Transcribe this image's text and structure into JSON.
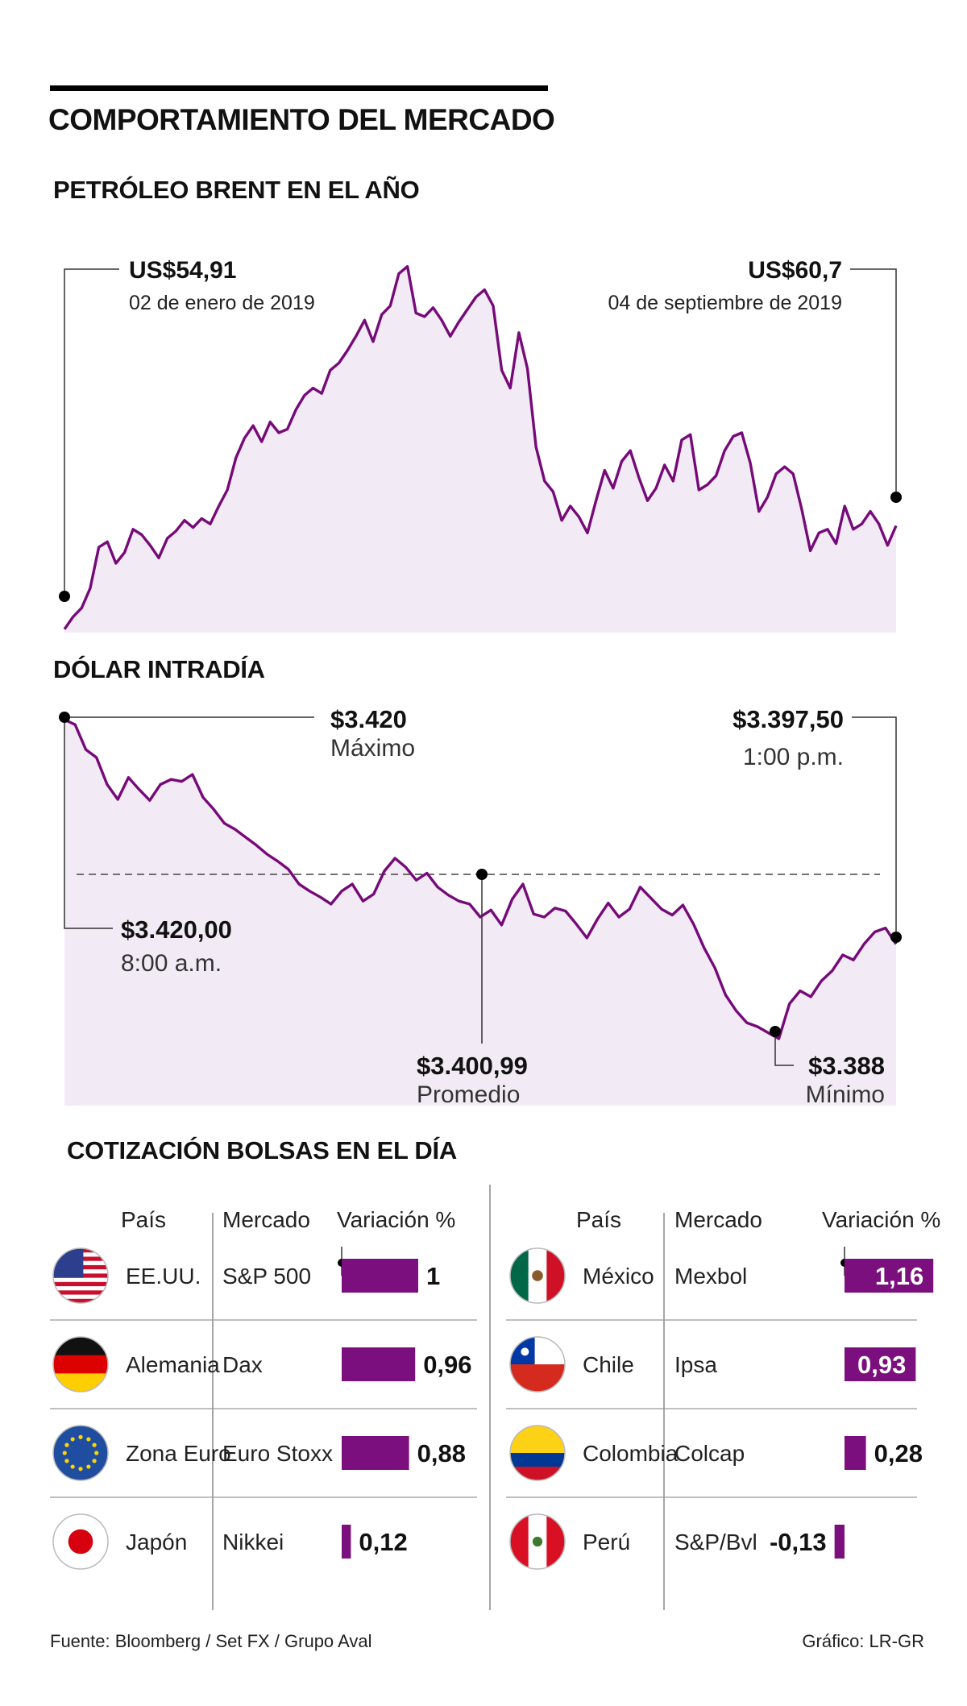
{
  "title": "COMPORTAMIENTO DEL MERCADO",
  "colors": {
    "line": "#760a79",
    "fill": "#f2ebf5",
    "bar": "#7a0f7d"
  },
  "brent": {
    "section_title": "PETRÓLEO BRENT EN EL AÑO",
    "start": {
      "value": "US$54,91",
      "date": "02 de enero de 2019"
    },
    "end": {
      "value": "US$60,7",
      "date": "04 de septiembre de 2019"
    }
  },
  "dolar": {
    "section_title": "DÓLAR INTRADÍA",
    "max": {
      "value": "$3.420",
      "label": "Máximo"
    },
    "close": {
      "value": "$3.397,50",
      "label": "1:00 p.m."
    },
    "open": {
      "value": "$3.420,00",
      "label": "8:00 a.m."
    },
    "avg": {
      "value": "$3.400,99",
      "label": "Promedio"
    },
    "min": {
      "value": "$3.388",
      "label": "Mínimo"
    }
  },
  "chart_data": [
    {
      "type": "line",
      "title": "PETRÓLEO BRENT EN EL AÑO",
      "x_range": [
        "2019-01-02",
        "2019-09-04"
      ],
      "y_range": [
        54,
        76
      ],
      "values": [
        54.91,
        55.6,
        56.1,
        57.2,
        59.5,
        59.8,
        58.6,
        59.2,
        60.5,
        60.2,
        59.6,
        58.9,
        60.0,
        60.4,
        61.0,
        60.6,
        61.1,
        60.8,
        61.8,
        62.7,
        64.5,
        65.6,
        66.3,
        65.4,
        66.5,
        65.9,
        66.1,
        67.2,
        68.0,
        68.4,
        68.1,
        69.4,
        69.8,
        70.5,
        71.3,
        72.2,
        71.0,
        72.5,
        73.0,
        74.8,
        75.2,
        72.6,
        72.4,
        72.9,
        72.2,
        71.3,
        72.1,
        72.8,
        73.5,
        73.9,
        73.0,
        69.4,
        68.4,
        71.5,
        69.5,
        65.1,
        63.2,
        62.6,
        61.0,
        61.8,
        61.2,
        60.3,
        62.1,
        63.8,
        62.8,
        64.3,
        64.9,
        63.4,
        62.1,
        62.8,
        64.1,
        63.2,
        65.5,
        65.8,
        62.7,
        63.0,
        63.5,
        64.9,
        65.7,
        65.9,
        64.2,
        61.5,
        62.3,
        63.6,
        64.0,
        63.6,
        61.6,
        59.3,
        60.3,
        60.5,
        59.7,
        61.8,
        60.5,
        60.8,
        61.5,
        60.8,
        59.6,
        60.7
      ]
    },
    {
      "type": "line",
      "title": "DÓLAR INTRADÍA",
      "x_range": [
        "8:00 a.m.",
        "1:00 p.m."
      ],
      "y_range": [
        3385,
        3420
      ],
      "reference_line": 3400.99,
      "values": [
        3420.0,
        3419.5,
        3417.0,
        3416.2,
        3413.5,
        3412.0,
        3414.2,
        3413.0,
        3411.9,
        3413.5,
        3414.0,
        3413.8,
        3414.5,
        3412.2,
        3411.0,
        3409.6,
        3409.0,
        3408.2,
        3407.4,
        3406.5,
        3405.8,
        3405.0,
        3403.5,
        3402.8,
        3402.2,
        3401.5,
        3402.8,
        3403.5,
        3401.8,
        3402.5,
        3404.8,
        3406.1,
        3405.2,
        3403.9,
        3404.6,
        3403.2,
        3402.4,
        3401.8,
        3401.5,
        3400.2,
        3400.9,
        3399.4,
        3402.0,
        3403.5,
        3400.5,
        3400.2,
        3401.1,
        3400.8,
        3399.5,
        3398.1,
        3400.0,
        3401.6,
        3400.2,
        3401.0,
        3403.2,
        3402.1,
        3401.0,
        3400.4,
        3401.4,
        3399.5,
        3397.1,
        3395.1,
        3392.4,
        3390.8,
        3389.6,
        3389.2,
        3388.6,
        3388.0,
        3391.5,
        3392.8,
        3392.2,
        3393.8,
        3394.8,
        3396.4,
        3395.9,
        3397.5,
        3398.7,
        3399.1,
        3397.5
      ]
    },
    {
      "type": "bar",
      "title": "COTIZACIÓN BOLSAS EN EL DÍA",
      "categories": [
        "S&P 500",
        "Dax",
        "Euro Stoxx",
        "Nikkei",
        "Mexbol",
        "Ipsa",
        "Colcap",
        "S&P/Bvl"
      ],
      "values": [
        1,
        0.96,
        0.88,
        0.12,
        1.16,
        0.93,
        0.28,
        -0.13
      ]
    }
  ],
  "bolsas": {
    "section_title": "COTIZACIÓN BOLSAS EN EL DÍA",
    "headers": {
      "pais": "País",
      "mercado": "Mercado",
      "variacion": "Variación %"
    },
    "left": [
      {
        "flag": "usa-flag-icon",
        "pais": "EE.UU.",
        "mercado": "S&P 500",
        "value": 1,
        "label": "1"
      },
      {
        "flag": "germany-flag-icon",
        "pais": "Alemania",
        "mercado": "Dax",
        "value": 0.96,
        "label": "0,96"
      },
      {
        "flag": "eu-flag-icon",
        "pais": "Zona Euro",
        "mercado": "Euro Stoxx",
        "value": 0.88,
        "label": "0,88"
      },
      {
        "flag": "japan-flag-icon",
        "pais": "Japón",
        "mercado": "Nikkei",
        "value": 0.12,
        "label": "0,12"
      }
    ],
    "right": [
      {
        "flag": "mexico-flag-icon",
        "pais": "México",
        "mercado": "Mexbol",
        "value": 1.16,
        "label": "1,16"
      },
      {
        "flag": "chile-flag-icon",
        "pais": "Chile",
        "mercado": "Ipsa",
        "value": 0.93,
        "label": "0,93"
      },
      {
        "flag": "colombia-flag-icon",
        "pais": "Colombia",
        "mercado": "Colcap",
        "value": 0.28,
        "label": "0,28"
      },
      {
        "flag": "peru-flag-icon",
        "pais": "Perú",
        "mercado": "S&P/Bvl",
        "value": -0.13,
        "label": "-0,13"
      }
    ]
  },
  "footer": {
    "source": "Fuente: Bloomberg / Set FX / Grupo Aval",
    "credit": "Gráfico: LR-GR"
  }
}
